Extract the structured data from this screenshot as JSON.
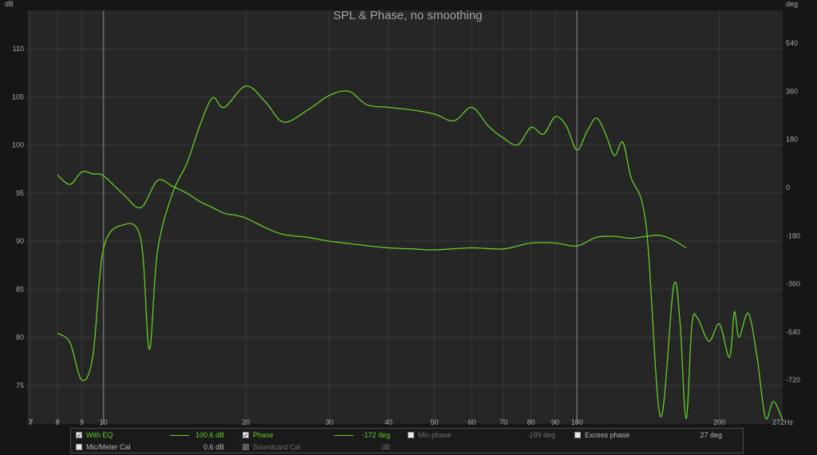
{
  "chart_data": {
    "type": "line",
    "title": "SPL & Phase, no smoothing",
    "xlabel": "Hz",
    "ylabel_left": "dB",
    "ylabel_right": "deg",
    "x_scale": "log",
    "xlim": [
      6.9,
      272
    ],
    "ylim_left": [
      71,
      114
    ],
    "ylim_right": [
      -884,
      663
    ],
    "x_ticks": [
      7,
      8,
      9,
      10,
      20,
      30,
      40,
      50,
      60,
      70,
      80,
      90,
      100,
      200
    ],
    "x_tick_labels": [
      "7",
      "8",
      "9",
      "10",
      "20",
      "30",
      "40",
      "50",
      "60",
      "70",
      "80",
      "90",
      "100",
      "200"
    ],
    "x_major_ticks": [
      10,
      100
    ],
    "x_end_label": "272Hz",
    "extra_left_tick_label": "7",
    "y_left_ticks": [
      75,
      80,
      85,
      90,
      95,
      100,
      105,
      110
    ],
    "y_right_ticks": [
      -720,
      -540,
      -360,
      -180,
      0,
      180,
      360,
      540
    ],
    "grid": true,
    "series": [
      {
        "name": "With EQ",
        "axis": "left",
        "color": "#62cc2a",
        "x": [
          8,
          8.5,
          9,
          9.5,
          10,
          11,
          12,
          13,
          14,
          15,
          16,
          17,
          18,
          19,
          20,
          22,
          24,
          27,
          30,
          35,
          40,
          45,
          50,
          60,
          70,
          80,
          90,
          100,
          110,
          120,
          130,
          140,
          150,
          160,
          170
        ],
        "y": [
          96.9,
          95.9,
          97.2,
          97.0,
          96.8,
          94.9,
          93.5,
          96.3,
          95.7,
          95.0,
          94.1,
          93.5,
          92.9,
          92.7,
          92.4,
          91.4,
          90.7,
          90.4,
          90.0,
          89.6,
          89.3,
          89.2,
          89.1,
          89.3,
          89.2,
          89.8,
          89.8,
          89.5,
          90.4,
          90.5,
          90.3,
          90.5,
          90.6,
          90.1,
          89.3
        ]
      },
      {
        "name": "Phase",
        "axis": "right",
        "color": "#62cc2a",
        "x": [
          8,
          8.5,
          9,
          9.5,
          10,
          11,
          12,
          12.5,
          13,
          14,
          15,
          16,
          17,
          18,
          20,
          22,
          24,
          27,
          30,
          33,
          36,
          40,
          45,
          50,
          55,
          60,
          65,
          70,
          75,
          80,
          85,
          90,
          95,
          100,
          105,
          110,
          115,
          120,
          125,
          130,
          140,
          150,
          160,
          165,
          170,
          175,
          180,
          190,
          200,
          210,
          215,
          220,
          230,
          240,
          250,
          260,
          272
        ],
        "y": [
          -545,
          -580,
          -720,
          -630,
          -230,
          -140,
          -195,
          -605,
          -240,
          -20,
          90,
          235,
          335,
          300,
          380,
          320,
          245,
          290,
          345,
          360,
          310,
          300,
          290,
          275,
          250,
          300,
          230,
          185,
          160,
          225,
          200,
          265,
          230,
          140,
          210,
          260,
          200,
          120,
          170,
          40,
          -140,
          -855,
          -370,
          -500,
          -865,
          -510,
          -490,
          -575,
          -510,
          -635,
          -465,
          -560,
          -470,
          -630,
          -860,
          -800,
          -870
        ]
      }
    ]
  },
  "legend": {
    "with_eq": {
      "label": "With EQ",
      "value": "100.6 dB"
    },
    "phase": {
      "label": "Phase",
      "value": "-172 deg"
    },
    "min_phase": {
      "label": "Min phase",
      "value": "-199 deg"
    },
    "excess_phase": {
      "label": "Excess phase",
      "value": "27 deg"
    },
    "mic_cal": {
      "label": "Mic/Meter Cal",
      "value": "0.6 dB"
    },
    "soundcard_cal": {
      "label": "Soundcard Cal",
      "value": "dB"
    },
    "check_glyph": "✓"
  }
}
